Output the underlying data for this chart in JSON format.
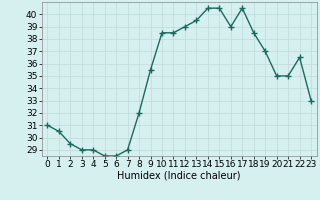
{
  "x": [
    0,
    1,
    2,
    3,
    4,
    5,
    6,
    7,
    8,
    9,
    10,
    11,
    12,
    13,
    14,
    15,
    16,
    17,
    18,
    19,
    20,
    21,
    22,
    23
  ],
  "y": [
    31,
    30.5,
    29.5,
    29,
    29,
    28.5,
    28.5,
    29,
    32,
    35.5,
    38.5,
    38.5,
    39,
    39.5,
    40.5,
    40.5,
    39,
    40.5,
    38.5,
    37,
    35,
    35,
    36.5,
    33
  ],
  "line_color": "#1a6b5a",
  "bg_color": "#d6f0f0",
  "grid_color": "#c0d8d8",
  "xlabel": "Humidex (Indice chaleur)",
  "xlim": [
    -0.5,
    23.5
  ],
  "ylim": [
    28.5,
    41
  ],
  "yticks": [
    29,
    30,
    31,
    32,
    33,
    34,
    35,
    36,
    37,
    38,
    39,
    40
  ],
  "xticks": [
    0,
    1,
    2,
    3,
    4,
    5,
    6,
    7,
    8,
    9,
    10,
    11,
    12,
    13,
    14,
    15,
    16,
    17,
    18,
    19,
    20,
    21,
    22,
    23
  ],
  "marker": "+",
  "markersize": 4,
  "linewidth": 1.0,
  "tick_fontsize": 6.5,
  "xlabel_fontsize": 7
}
